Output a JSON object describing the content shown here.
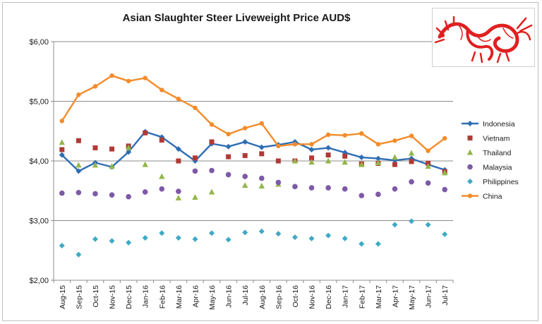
{
  "chart_data": {
    "type": "line",
    "title": "Asian Slaughter Steer Liveweight Price AUD$",
    "xlabel": "",
    "ylabel": "",
    "ylim": [
      2,
      6
    ],
    "yticks": [
      "$2,00",
      "$3,00",
      "$4,00",
      "$5,00",
      "$6,00"
    ],
    "ytick_values": [
      2,
      3,
      4,
      5,
      6
    ],
    "grid": true,
    "legend_position": "right",
    "categories": [
      "Aug-15",
      "Sep-15",
      "Oct-15",
      "Nov-15",
      "Dec-15",
      "Jan-16",
      "Feb-16",
      "Mar-16",
      "Apr-16",
      "May-16",
      "Jun-16",
      "Jul-16",
      "Aug-16",
      "Sep-16",
      "Oct-16",
      "Nov-16",
      "Dec-16",
      "Jan-17",
      "Feb-17",
      "Mar-17",
      "Apr-17",
      "May-17",
      "Jun-17",
      "Jul-17"
    ],
    "series": [
      {
        "name": "Indonesia",
        "style": "line-diamond",
        "color": "#2e6db4",
        "values": [
          4.1,
          3.83,
          3.97,
          3.9,
          4.15,
          4.49,
          4.4,
          4.2,
          4.0,
          4.29,
          4.24,
          4.32,
          4.23,
          4.27,
          4.32,
          4.19,
          4.22,
          4.14,
          4.06,
          4.04,
          4.01,
          4.04,
          3.94,
          3.85
        ]
      },
      {
        "name": "Vietnam",
        "style": "square",
        "color": "#b03a36",
        "values": [
          4.19,
          4.34,
          4.22,
          4.2,
          4.25,
          4.47,
          4.35,
          4.0,
          4.05,
          4.32,
          4.07,
          4.09,
          4.12,
          4.0,
          4.0,
          4.05,
          4.1,
          4.08,
          3.95,
          3.96,
          3.94,
          3.99,
          3.96,
          3.82
        ]
      },
      {
        "name": "Thailand",
        "style": "triangle",
        "color": "#93b64b",
        "values": [
          4.31,
          3.93,
          3.93,
          3.91,
          4.22,
          3.94,
          3.74,
          3.38,
          3.39,
          3.48,
          null,
          3.59,
          3.58,
          3.61,
          4.0,
          3.98,
          4.0,
          3.98,
          3.94,
          3.97,
          4.06,
          4.13,
          3.91,
          3.8
        ]
      },
      {
        "name": "Malaysia",
        "style": "circle",
        "color": "#7d5aa6",
        "values": [
          3.46,
          3.47,
          3.45,
          3.43,
          3.4,
          3.48,
          3.53,
          3.49,
          3.83,
          3.84,
          3.77,
          3.74,
          3.71,
          3.64,
          3.57,
          3.55,
          3.55,
          3.53,
          3.42,
          3.44,
          3.53,
          3.65,
          3.63,
          3.52
        ]
      },
      {
        "name": "Philippines",
        "style": "diamond",
        "color": "#3fa9c4",
        "values": [
          2.58,
          2.43,
          2.69,
          2.66,
          2.63,
          2.71,
          2.79,
          2.71,
          2.69,
          2.79,
          2.68,
          2.8,
          2.82,
          2.78,
          2.72,
          2.7,
          2.75,
          2.7,
          2.61,
          2.61,
          2.93,
          2.99,
          2.93,
          2.77
        ]
      },
      {
        "name": "China",
        "style": "line-circle",
        "color": "#f38b2a",
        "values": [
          4.67,
          5.11,
          5.25,
          5.43,
          5.34,
          5.39,
          5.19,
          5.04,
          4.89,
          4.61,
          4.45,
          4.55,
          4.63,
          4.25,
          4.28,
          4.28,
          4.44,
          4.43,
          4.46,
          4.28,
          4.34,
          4.42,
          4.17,
          4.38
        ]
      }
    ]
  },
  "logo": {
    "name": "red-dragon-logo",
    "color": "#e02020"
  }
}
